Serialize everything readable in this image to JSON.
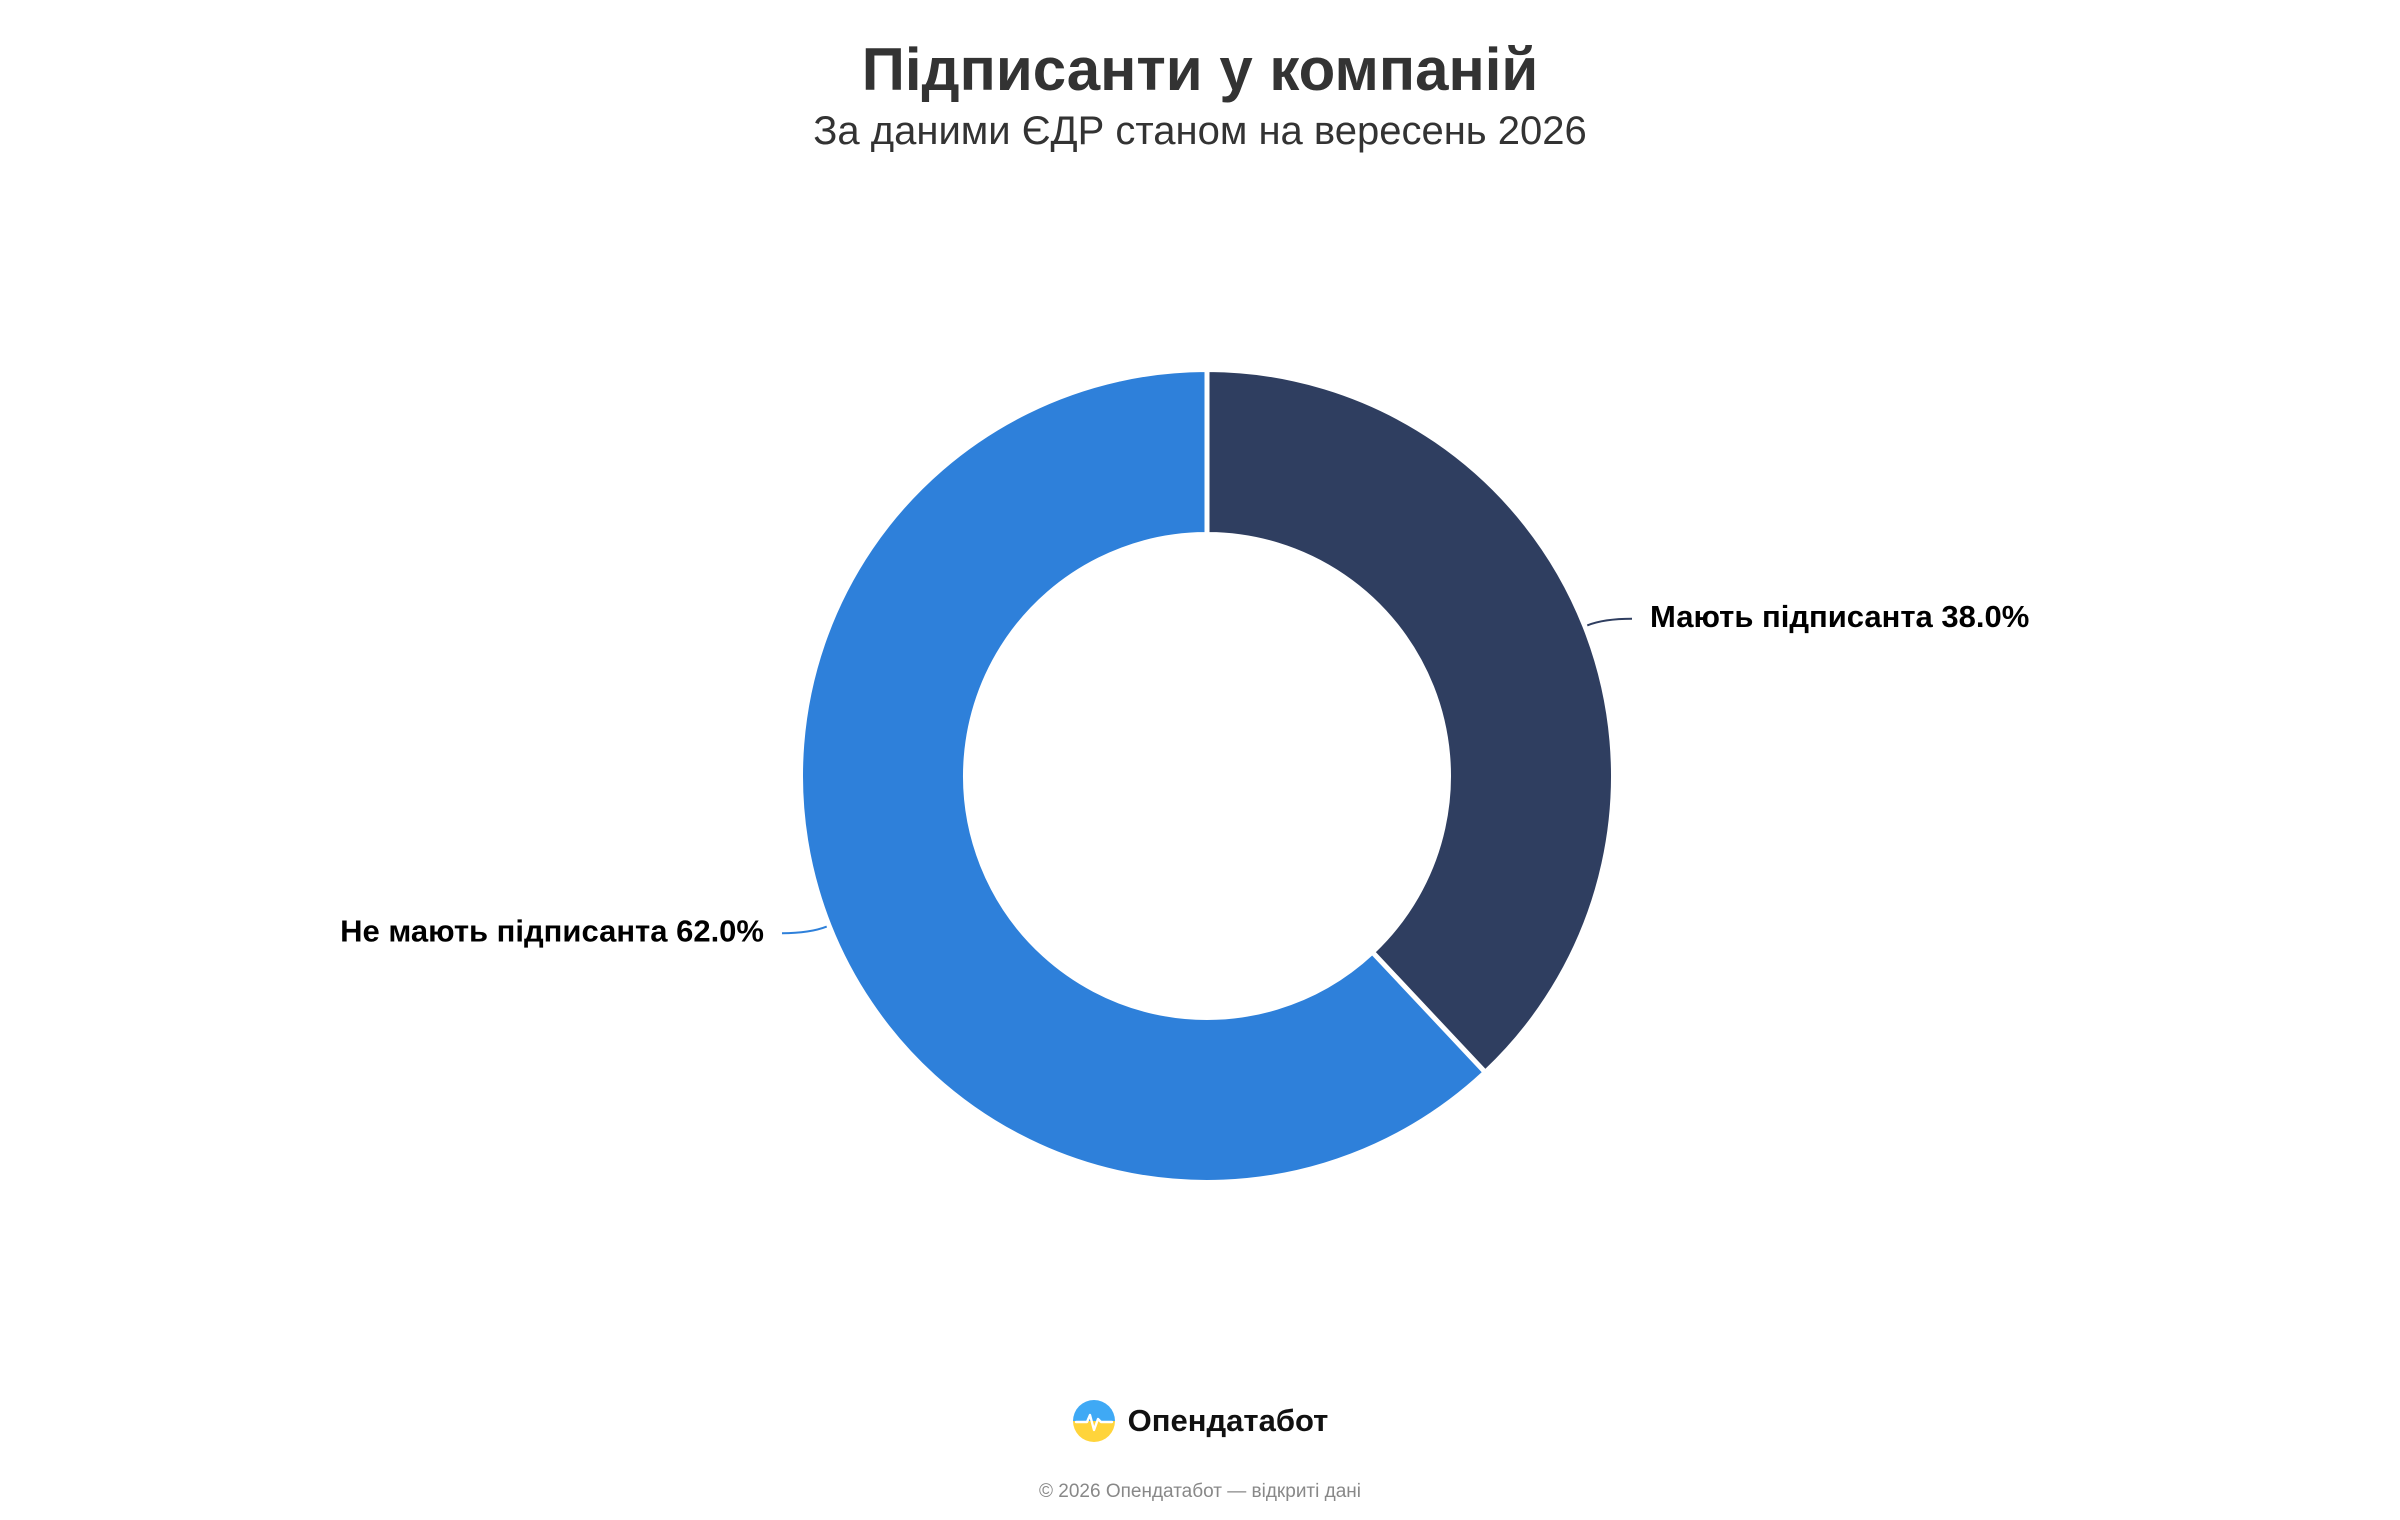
{
  "header": {
    "title": "Підписанти у компаній",
    "subtitle": "За даними ЄДР станом на вересень 2026"
  },
  "chart_data": {
    "type": "pie",
    "variant": "donut",
    "title": "Підписанти у компаній",
    "subtitle": "За даними ЄДР станом на вересень 2026",
    "slices": [
      {
        "name": "Мають підписанта",
        "value": 38.0,
        "label": "Мають підписанта 38.0%",
        "color": "#2f3e60"
      },
      {
        "name": "Не мають підписанта",
        "value": 62.0,
        "label": "Не мають підписанта 62.0%",
        "color": "#2e80da"
      }
    ],
    "unit": "%",
    "start": "top",
    "direction": "clockwise",
    "legend": "none"
  },
  "footer": {
    "brand_name": "Опендатабот",
    "brand_logo_icon": "opendatabot-logo-icon",
    "copyright": "© 2026 Опендатабот — відкриті дані"
  }
}
